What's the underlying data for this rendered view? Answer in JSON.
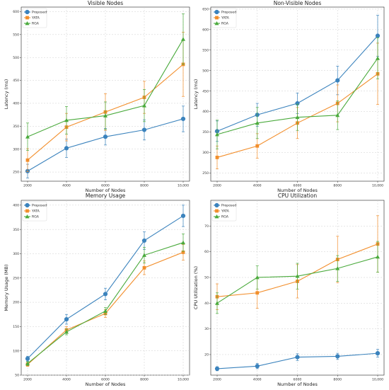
{
  "colors": {
    "Proposed": "#3b83bd",
    "YATA": "#f28e2b",
    "RGA": "#4aaa3c"
  },
  "chart_data": [
    {
      "type": "line",
      "title": "Visible Nodes",
      "xlabel": "Number of Nodes",
      "ylabel": "Latency (ms)",
      "categories": [
        "2000",
        "4000",
        "6000",
        "8000",
        "10,000"
      ],
      "yticks": [
        250,
        300,
        350,
        400,
        450,
        500,
        550,
        600
      ],
      "ylim": [
        230,
        610
      ],
      "legend": "top-left",
      "grid": true,
      "series": [
        {
          "name": "Proposed",
          "marker": "circle",
          "values": [
            252,
            302,
            327,
            342,
            366
          ],
          "err": [
            15,
            20,
            18,
            22,
            28
          ]
        },
        {
          "name": "YATA",
          "marker": "square",
          "values": [
            276,
            348,
            381,
            413,
            485
          ],
          "err": [
            25,
            30,
            40,
            35,
            70
          ]
        },
        {
          "name": "RGA",
          "marker": "triangle",
          "values": [
            327,
            363,
            373,
            395,
            540
          ],
          "err": [
            30,
            30,
            30,
            35,
            55
          ]
        }
      ]
    },
    {
      "type": "line",
      "title": "Non-Visible Nodes",
      "xlabel": "Number of Nodes",
      "ylabel": "Latency (ms)",
      "categories": [
        "2000",
        "4000",
        "6000",
        "8000",
        "10,000"
      ],
      "yticks": [
        250,
        300,
        350,
        400,
        450,
        500,
        550,
        600,
        650
      ],
      "ylim": [
        230,
        655
      ],
      "legend": "top-left",
      "grid": true,
      "series": [
        {
          "name": "Proposed",
          "marker": "circle",
          "values": [
            352,
            392,
            420,
            476,
            585
          ],
          "err": [
            25,
            28,
            25,
            35,
            50
          ]
        },
        {
          "name": "YATA",
          "marker": "square",
          "values": [
            288,
            316,
            372,
            420,
            492
          ],
          "err": [
            28,
            30,
            38,
            45,
            75
          ]
        },
        {
          "name": "RGA",
          "marker": "triangle",
          "values": [
            344,
            372,
            386,
            391,
            530
          ],
          "err": [
            35,
            38,
            32,
            35,
            50
          ]
        }
      ]
    },
    {
      "type": "line",
      "title": "Memory Usage",
      "xlabel": "Number of Nodes",
      "ylabel": "Memory Usage (MB)",
      "categories": [
        "2000",
        "4000",
        "6000",
        "8000",
        "10,000"
      ],
      "yticks": [
        50,
        100,
        150,
        200,
        250,
        300,
        350,
        400
      ],
      "ylim": [
        50,
        410
      ],
      "legend": "top-left",
      "grid": true,
      "series": [
        {
          "name": "Proposed",
          "marker": "circle",
          "values": [
            84,
            165,
            217,
            327,
            378
          ],
          "err": [
            5,
            10,
            12,
            18,
            22
          ]
        },
        {
          "name": "YATA",
          "marker": "square",
          "values": [
            72,
            143,
            177,
            271,
            303
          ],
          "err": [
            4,
            7,
            8,
            14,
            16
          ]
        },
        {
          "name": "RGA",
          "marker": "triangle",
          "values": [
            74,
            139,
            182,
            297,
            323
          ],
          "err": [
            4,
            6,
            7,
            16,
            18
          ]
        }
      ]
    },
    {
      "type": "line",
      "title": "CPU Utilization",
      "xlabel": "Number of Nodes",
      "ylabel": "CPU Utilization (%)",
      "categories": [
        "2000",
        "4000",
        "6000",
        "8000",
        "10,000"
      ],
      "yticks": [
        20,
        30,
        40,
        50,
        60,
        70
      ],
      "ylim": [
        12,
        80
      ],
      "legend": "top-left",
      "grid": true,
      "series": [
        {
          "name": "Proposed",
          "marker": "circle",
          "values": [
            14.5,
            15.5,
            19,
            19.3,
            20.5
          ],
          "err": [
            0.8,
            1.0,
            1.3,
            1.2,
            1.5
          ]
        },
        {
          "name": "YATA",
          "marker": "square",
          "values": [
            42.5,
            44,
            48.5,
            57,
            63
          ],
          "err": [
            5,
            6,
            6.5,
            9,
            11
          ]
        },
        {
          "name": "RGA",
          "marker": "triangle",
          "values": [
            40,
            50,
            50.5,
            53.5,
            58
          ],
          "err": [
            4,
            4.5,
            5,
            5,
            6
          ]
        }
      ]
    }
  ]
}
